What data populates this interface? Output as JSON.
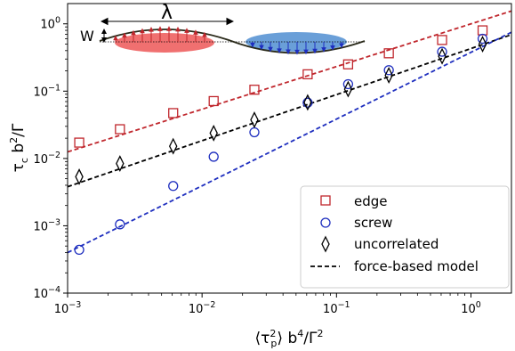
{
  "chart_data": {
    "type": "scatter",
    "xscale": "log",
    "yscale": "log",
    "xlim": [
      0.001,
      2.0
    ],
    "ylim": [
      0.0001,
      2.0
    ],
    "xticks": [
      {
        "value": 0.001,
        "label_base": "10",
        "label_exp": "−3"
      },
      {
        "value": 0.01,
        "label_base": "10",
        "label_exp": "−2"
      },
      {
        "value": 0.1,
        "label_base": "10",
        "label_exp": "−1"
      },
      {
        "value": 1,
        "label_base": "10",
        "label_exp": "0"
      }
    ],
    "yticks": [
      {
        "value": 0.0001,
        "label_base": "10",
        "label_exp": "−4"
      },
      {
        "value": 0.001,
        "label_base": "10",
        "label_exp": "−3"
      },
      {
        "value": 0.01,
        "label_base": "10",
        "label_exp": "−2"
      },
      {
        "value": 0.1,
        "label_base": "10",
        "label_exp": "−1"
      },
      {
        "value": 1,
        "label_base": "10",
        "label_exp": "0"
      }
    ],
    "xlabel": "⟨τp²⟩ b⁴/Γ²",
    "ylabel": "τc b²/Γ",
    "legend_position": "lower-right",
    "series": [
      {
        "name": "edge",
        "marker": "square",
        "color": "#c0272d",
        "points": [
          [
            0.00122,
            0.0172
          ],
          [
            0.00245,
            0.0272
          ],
          [
            0.0061,
            0.0472
          ],
          [
            0.0122,
            0.0712
          ],
          [
            0.0245,
            0.105
          ],
          [
            0.061,
            0.178
          ],
          [
            0.122,
            0.25
          ],
          [
            0.245,
            0.365
          ],
          [
            0.61,
            0.575
          ],
          [
            1.22,
            0.8
          ]
        ]
      },
      {
        "name": "screw",
        "marker": "circle",
        "color": "#1f2fbf",
        "points": [
          [
            0.00122,
            0.00044
          ],
          [
            0.00245,
            0.00105
          ],
          [
            0.0061,
            0.0039
          ],
          [
            0.0122,
            0.0106
          ],
          [
            0.0245,
            0.0245
          ],
          [
            0.061,
            0.0675
          ],
          [
            0.122,
            0.127
          ],
          [
            0.245,
            0.205
          ],
          [
            0.61,
            0.385
          ],
          [
            1.22,
            0.6
          ]
        ]
      },
      {
        "name": "uncorrelated",
        "marker": "diamond",
        "color": "#000000",
        "points": [
          [
            0.00122,
            0.00535
          ],
          [
            0.00245,
            0.0084
          ],
          [
            0.0061,
            0.0152
          ],
          [
            0.0122,
            0.0238
          ],
          [
            0.0245,
            0.0375
          ],
          [
            0.061,
            0.068
          ],
          [
            0.122,
            0.107
          ],
          [
            0.245,
            0.172
          ],
          [
            0.61,
            0.33
          ],
          [
            1.22,
            0.5
          ]
        ]
      }
    ],
    "fit_lines": [
      {
        "legend": "force-based model",
        "color": "#000000",
        "dash": true,
        "points": [
          [
            0.001,
            0.0038
          ],
          [
            2.0,
            0.69
          ]
        ]
      },
      {
        "legend": "",
        "color": "#c0272d",
        "dash": true,
        "points": [
          [
            0.001,
            0.0125
          ],
          [
            2.0,
            1.55
          ]
        ]
      },
      {
        "legend": "",
        "color": "#1f2fbf",
        "dash": true,
        "points": [
          [
            0.001,
            0.0004
          ],
          [
            2.0,
            0.75
          ]
        ]
      }
    ],
    "inset": {
      "wavelength_label": "λ",
      "amplitude_label": "W",
      "colors": {
        "positive_lobe": "#f07070",
        "negative_lobe": "#6a9fd8"
      }
    }
  }
}
